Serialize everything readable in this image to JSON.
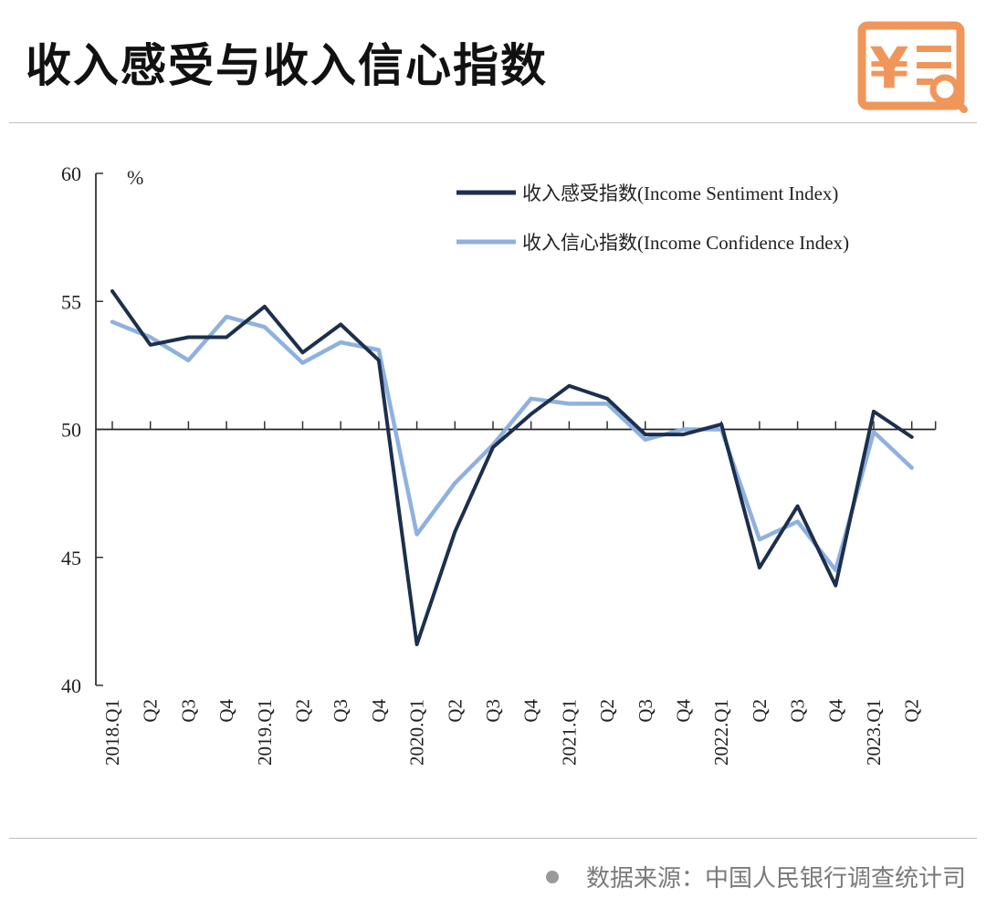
{
  "header": {
    "title": "收入感受与收入信心指数",
    "logo_icon": "yuan-receipt-search-icon",
    "logo_color": "#f0965a"
  },
  "chart_data": {
    "type": "line",
    "unit_label": "%",
    "ylim": [
      40,
      60
    ],
    "yticks": [
      40,
      45,
      50,
      55,
      60
    ],
    "reference_line": 50,
    "grid": false,
    "legend_position": "top-right",
    "categories": [
      "2018.Q1",
      "Q2",
      "Q3",
      "Q4",
      "2019.Q1",
      "Q2",
      "Q3",
      "Q4",
      "2020.Q1",
      "Q2",
      "Q3",
      "Q4",
      "2021.Q1",
      "Q2",
      "Q3",
      "Q4",
      "2022.Q1",
      "Q2",
      "Q3",
      "Q4",
      "2023.Q1",
      "Q2"
    ],
    "series": [
      {
        "name": "收入感受指数(Income Sentiment Index)",
        "color": "#1c2f4d",
        "values": [
          55.4,
          53.3,
          53.6,
          53.6,
          54.8,
          53.0,
          54.1,
          52.7,
          41.6,
          46.0,
          49.3,
          50.6,
          51.7,
          51.2,
          49.8,
          49.8,
          50.2,
          44.6,
          47.0,
          43.9,
          50.7,
          49.7
        ]
      },
      {
        "name": "收入信心指数(Income Confidence Index)",
        "color": "#8fb1df",
        "values": [
          54.2,
          53.6,
          52.7,
          54.4,
          54.0,
          52.6,
          53.4,
          53.1,
          45.9,
          47.9,
          49.4,
          51.2,
          51.0,
          51.0,
          49.6,
          50.0,
          50.0,
          45.7,
          46.4,
          44.5,
          49.9,
          48.5
        ]
      }
    ]
  },
  "footer": {
    "source": "数据来源：中国人民银行调查统计司"
  }
}
